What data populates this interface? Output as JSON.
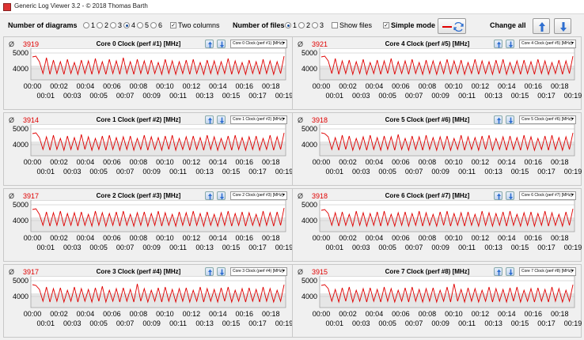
{
  "window": {
    "title": "Generic Log Viewer 3.2 - © 2018 Thomas Barth"
  },
  "toolbar": {
    "num_diagrams_label": "Number of diagrams",
    "diagram_options": [
      {
        "label": "1",
        "selected": false
      },
      {
        "label": "2",
        "selected": false
      },
      {
        "label": "3",
        "selected": false
      },
      {
        "label": "4",
        "selected": true
      },
      {
        "label": "5",
        "selected": false
      },
      {
        "label": "6",
        "selected": false
      }
    ],
    "two_columns": {
      "label": "Two columns",
      "checked": true
    },
    "num_files_label": "Number of files",
    "file_options": [
      {
        "label": "1",
        "selected": true
      },
      {
        "label": "2",
        "selected": false
      },
      {
        "label": "3",
        "selected": false
      }
    ],
    "show_files": {
      "label": "Show files",
      "checked": false
    },
    "simple_mode": {
      "label": "Simple mode",
      "checked": true
    },
    "change_all_label": "Change all",
    "accent_red": "#e00000",
    "accent_blue": "#2f6fd0"
  },
  "axis": {
    "y_ticks": [
      "5000",
      "4000"
    ],
    "x_ticks_top": [
      "00:00",
      "00:02",
      "00:04",
      "00:06",
      "00:08",
      "00:10",
      "00:12",
      "00:14",
      "00:16",
      "00:18"
    ],
    "x_ticks_bottom": [
      "00:01",
      "00:03",
      "00:05",
      "00:07",
      "00:09",
      "00:11",
      "00:13",
      "00:15",
      "00:17",
      "00:19"
    ],
    "ylim": [
      3300,
      5300
    ]
  },
  "panels": [
    {
      "avg_symbol": "Ø",
      "average": "3919",
      "title": "Core 0 Clock (perf #1) [MHz]",
      "select": "Core 0 Clock (perf #1) [MHz]"
    },
    {
      "avg_symbol": "Ø",
      "average": "3921",
      "title": "Core 4 Clock (perf #5) [MHz]",
      "select": "Core 4 Clock (perf #5) [MHz]"
    },
    {
      "avg_symbol": "Ø",
      "average": "3914",
      "title": "Core 1 Clock (perf #2) [MHz]",
      "select": "Core 1 Clock (perf #2) [MHz]"
    },
    {
      "avg_symbol": "Ø",
      "average": "3918",
      "title": "Core 5 Clock (perf #6) [MHz]",
      "select": "Core 5 Clock (perf #6) [MHz]"
    },
    {
      "avg_symbol": "Ø",
      "average": "3917",
      "title": "Core 2 Clock (perf #3) [MHz]",
      "select": "Core 2 Clock (perf #3) [MHz]"
    },
    {
      "avg_symbol": "Ø",
      "average": "3918",
      "title": "Core 6 Clock (perf #7) [MHz]",
      "select": "Core 6 Clock (perf #7) [MHz]"
    },
    {
      "avg_symbol": "Ø",
      "average": "3917",
      "title": "Core 3 Clock (perf #4) [MHz]",
      "select": "Core 3 Clock (perf #4) [MHz]"
    },
    {
      "avg_symbol": "Ø",
      "average": "3915",
      "title": "Core 7 Clock (perf #8) [MHz]",
      "select": "Core 7 Clock (perf #8) [MHz]"
    }
  ],
  "chart_data": [
    {
      "type": "line",
      "series": [
        {
          "values": [
            4750,
            4800,
            4450,
            3700,
            4700,
            3650,
            4550,
            3700,
            4450,
            3650,
            4600,
            3700,
            4400,
            3650,
            4550,
            3700,
            4500,
            3650,
            4650,
            3700,
            4450,
            3650,
            4600,
            3700,
            4500,
            3650,
            4700,
            3700,
            4450,
            3650,
            4600,
            3700,
            4500,
            3650,
            4550,
            3700,
            4400,
            3650,
            4600,
            3700,
            4500,
            3650,
            4450,
            3700,
            4550,
            3650,
            4600,
            3700,
            4400,
            3650,
            4550,
            3700,
            4500,
            3650,
            4450,
            3700,
            4650,
            3650,
            4500,
            3700,
            4400,
            3650,
            4550,
            3700,
            4450,
            3650,
            4600,
            3700,
            4500,
            3650,
            4450,
            3700,
            4800
          ]
        }
      ]
    },
    {
      "type": "line",
      "series": [
        {
          "values": [
            4750,
            4800,
            4500,
            3700,
            4650,
            3650,
            4500,
            3700,
            4550,
            3650,
            4450,
            3700,
            4600,
            3650,
            4400,
            3700,
            4550,
            3650,
            4500,
            3700,
            4650,
            3650,
            4450,
            3700,
            4500,
            3650,
            4600,
            3700,
            4400,
            3650,
            4550,
            3700,
            4500,
            3650,
            4450,
            3700,
            4600,
            3650,
            4500,
            3700,
            4550,
            3650,
            4400,
            3700,
            4600,
            3650,
            4500,
            3700,
            4450,
            3650,
            4550,
            3700,
            4600,
            3650,
            4400,
            3700,
            4500,
            3650,
            4550,
            3700,
            4450,
            3650,
            4600,
            3700,
            4500,
            3650,
            4400,
            3700,
            4550,
            3650,
            4500,
            3700,
            4800
          ]
        }
      ]
    },
    {
      "type": "line",
      "series": [
        {
          "values": [
            4700,
            4750,
            4450,
            3700,
            4500,
            3650,
            4600,
            3700,
            4400,
            3650,
            4550,
            3700,
            4450,
            3650,
            4650,
            3700,
            4500,
            3650,
            4400,
            3700,
            4550,
            3650,
            4600,
            3700,
            4450,
            3650,
            4500,
            3700,
            4550,
            3650,
            4400,
            3700,
            4600,
            3650,
            4500,
            3700,
            4450,
            3650,
            4550,
            3700,
            4600,
            3650,
            4400,
            3700,
            4500,
            3650,
            4550,
            3700,
            4450,
            3650,
            4600,
            3700,
            4500,
            3650,
            4400,
            3700,
            4550,
            3650,
            4600,
            3700,
            4450,
            3650,
            4500,
            3700,
            4550,
            3650,
            4400,
            3700,
            4600,
            3650,
            4500,
            3700,
            4750
          ]
        }
      ]
    },
    {
      "type": "line",
      "series": [
        {
          "values": [
            4750,
            4700,
            4500,
            3700,
            4450,
            3650,
            4600,
            3700,
            4550,
            3650,
            4400,
            3700,
            4500,
            3650,
            4600,
            3700,
            4450,
            3650,
            4550,
            3700,
            4500,
            3650,
            4650,
            3700,
            4400,
            3650,
            4550,
            3700,
            4500,
            3650,
            4600,
            3700,
            4450,
            3650,
            4500,
            3700,
            4550,
            3650,
            4400,
            3700,
            4600,
            3650,
            4500,
            3700,
            4450,
            3650,
            4550,
            3700,
            4600,
            3650,
            4400,
            3700,
            4500,
            3650,
            4550,
            3700,
            4450,
            3650,
            4600,
            3700,
            4500,
            3650,
            4400,
            3700,
            4550,
            3650,
            4600,
            3700,
            4450,
            3650,
            4500,
            3700,
            4750
          ]
        }
      ]
    },
    {
      "type": "line",
      "series": [
        {
          "values": [
            4700,
            4750,
            4400,
            3700,
            4550,
            3650,
            4500,
            3700,
            4600,
            3650,
            4450,
            3700,
            4500,
            3650,
            4550,
            3700,
            4400,
            3650,
            4600,
            3700,
            4500,
            3650,
            4450,
            3700,
            4550,
            3650,
            4600,
            3700,
            4400,
            3650,
            4500,
            3700,
            4550,
            3650,
            4450,
            3700,
            4600,
            3650,
            4500,
            3700,
            4400,
            3650,
            4550,
            3700,
            4500,
            3650,
            4600,
            3700,
            4450,
            3650,
            4550,
            3700,
            4400,
            3650,
            4500,
            3700,
            4600,
            3650,
            4450,
            3700,
            4550,
            3650,
            4500,
            3700,
            4400,
            3650,
            4600,
            3700,
            4500,
            3650,
            4550,
            3700,
            4800
          ]
        }
      ]
    },
    {
      "type": "line",
      "series": [
        {
          "values": [
            4650,
            4700,
            4450,
            3700,
            4500,
            3650,
            4550,
            3700,
            4400,
            3650,
            4600,
            3700,
            4500,
            3650,
            4450,
            3700,
            4550,
            3650,
            4600,
            3700,
            4400,
            3650,
            4500,
            3700,
            4550,
            3650,
            4450,
            3700,
            4600,
            3650,
            4500,
            3700,
            4400,
            3650,
            4550,
            3700,
            4600,
            3650,
            4450,
            3700,
            4500,
            3650,
            4550,
            3700,
            4400,
            3650,
            4600,
            3700,
            4500,
            3650,
            4450,
            3700,
            4550,
            3650,
            4600,
            3700,
            4400,
            3650,
            4500,
            3700,
            4550,
            3650,
            4450,
            3700,
            4600,
            3650,
            4500,
            3700,
            4400,
            3650,
            4550,
            3700,
            4750
          ]
        }
      ]
    },
    {
      "type": "line",
      "series": [
        {
          "values": [
            4750,
            4700,
            4450,
            3700,
            4600,
            3650,
            4500,
            3700,
            4550,
            3650,
            4400,
            3700,
            4600,
            3650,
            4500,
            3700,
            4450,
            3650,
            4550,
            3700,
            4650,
            3650,
            4400,
            3700,
            4500,
            3650,
            4550,
            3700,
            4450,
            3650,
            4800,
            3700,
            4500,
            3650,
            4400,
            3700,
            4550,
            3650,
            4600,
            3700,
            4450,
            3650,
            4500,
            3700,
            4550,
            3650,
            4400,
            3700,
            4600,
            3650,
            4500,
            3700,
            4450,
            3650,
            4550,
            3700,
            4600,
            3650,
            4400,
            3700,
            4500,
            3650,
            4550,
            3700,
            4450,
            3650,
            4600,
            3700,
            4500,
            3650,
            4400,
            3700,
            4750
          ]
        }
      ]
    },
    {
      "type": "line",
      "series": [
        {
          "values": [
            4700,
            4750,
            4500,
            3700,
            4450,
            3650,
            4550,
            3700,
            4600,
            3650,
            4400,
            3700,
            4500,
            3650,
            4550,
            3700,
            4450,
            3650,
            4600,
            3700,
            4500,
            3650,
            4400,
            3700,
            4550,
            3650,
            4600,
            3700,
            4450,
            3650,
            4500,
            3700,
            4550,
            3650,
            4400,
            3700,
            4600,
            3650,
            4800,
            3700,
            4450,
            3650,
            4550,
            3700,
            4500,
            3650,
            4400,
            3700,
            4600,
            3650,
            4500,
            3700,
            4450,
            3650,
            4550,
            3700,
            4600,
            3650,
            4400,
            3700,
            4500,
            3650,
            4550,
            3700,
            4450,
            3650,
            4600,
            3700,
            4500,
            3650,
            4400,
            3700,
            4750
          ]
        }
      ]
    }
  ]
}
